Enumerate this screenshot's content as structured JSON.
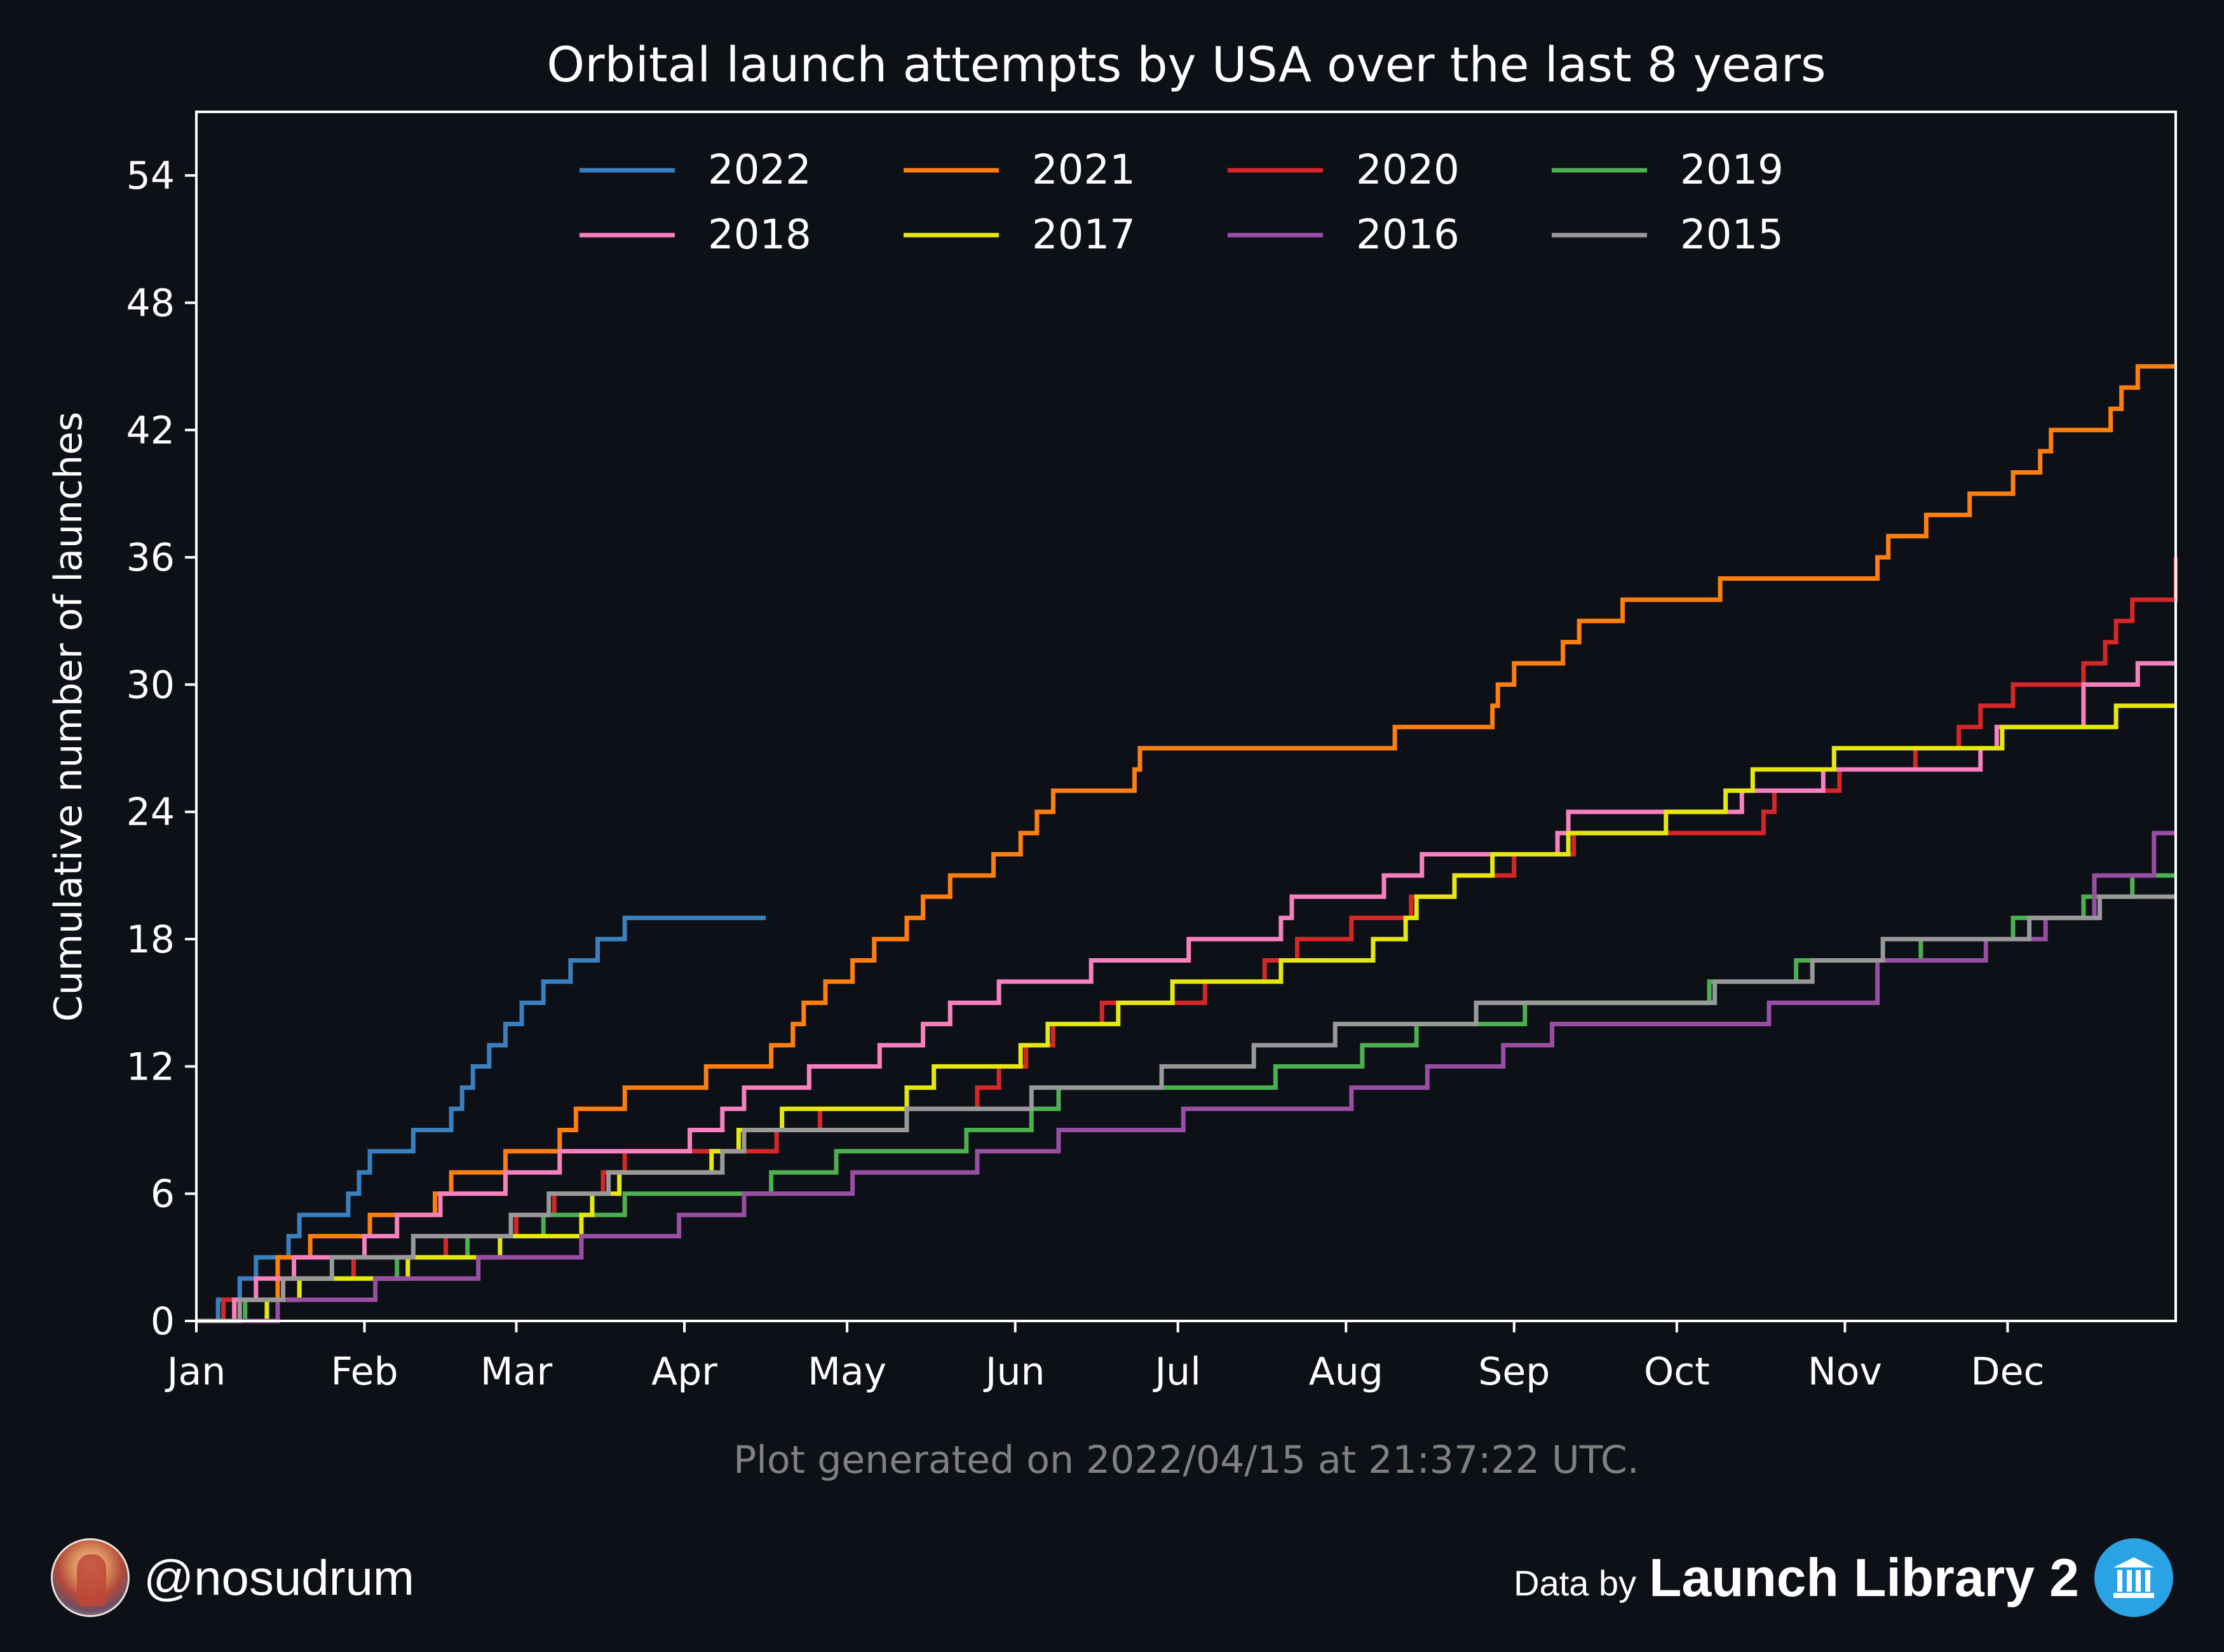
{
  "title": "Orbital launch attempts by USA over the last 8 years",
  "footnote": "Plot generated on 2022/04/15 at 21:37:22 UTC.",
  "author": {
    "handle": "@nosudrum",
    "avatar_icon": "astronaut-avatar-icon"
  },
  "credit": {
    "prefix": "Data by",
    "brand": "Launch Library 2",
    "logo_icon": "museum-columns-icon"
  },
  "colors": {
    "background": "#0d1017",
    "axes": "#ffffff",
    "footnote": "#808080"
  },
  "chart_data": {
    "type": "line",
    "step": "post",
    "ylabel": "Cumulative number of launches",
    "xlabel": "",
    "x_ticks": [
      "Jan",
      "Feb",
      "Mar",
      "Apr",
      "May",
      "Jun",
      "Jul",
      "Aug",
      "Sep",
      "Oct",
      "Nov",
      "Dec"
    ],
    "x_unit": "day of year",
    "xlim": [
      1,
      366
    ],
    "ylim": [
      0,
      57
    ],
    "y_ticks": [
      0,
      6,
      12,
      18,
      24,
      30,
      36,
      42,
      48,
      54
    ],
    "grid": false,
    "legend": {
      "position": "top-center",
      "columns": 4
    },
    "series": [
      {
        "name": "2022",
        "color": "#3a80bf",
        "x": [
          1,
          5,
          9,
          12,
          18,
          20,
          29,
          31,
          33,
          41,
          48,
          50,
          52,
          55,
          58,
          61,
          65,
          70,
          75,
          80,
          91,
          98,
          106
        ],
        "y": [
          0,
          1,
          2,
          3,
          4,
          5,
          6,
          7,
          8,
          9,
          10,
          11,
          12,
          13,
          14,
          15,
          16,
          17,
          18,
          19,
          19,
          19,
          19
        ]
      },
      {
        "name": "2021",
        "color": "#ff7f0e",
        "x": [
          1,
          8,
          16,
          22,
          33,
          45,
          48,
          58,
          68,
          71,
          80,
          95,
          107,
          111,
          113,
          117,
          122,
          126,
          132,
          135,
          140,
          148,
          153,
          156,
          159,
          161,
          165,
          174,
          175,
          180,
          222,
          240,
          241,
          244,
          253,
          256,
          264,
          282,
          311,
          313,
          320,
          328,
          336,
          341,
          343,
          354,
          356,
          359,
          366
        ],
        "y": [
          0,
          1,
          3,
          4,
          5,
          6,
          7,
          8,
          9,
          10,
          11,
          12,
          13,
          14,
          15,
          16,
          17,
          18,
          19,
          20,
          21,
          22,
          23,
          24,
          25,
          25,
          25,
          26,
          27,
          27,
          28,
          29,
          30,
          31,
          32,
          33,
          34,
          35,
          36,
          37,
          38,
          39,
          40,
          41,
          42,
          43,
          44,
          45,
          45
        ]
      },
      {
        "name": "2020",
        "color": "#d62728",
        "x": [
          1,
          6,
          20,
          30,
          47,
          60,
          67,
          76,
          80,
          91,
          108,
          116,
          145,
          149,
          154,
          159,
          168,
          187,
          198,
          204,
          214,
          225,
          233,
          244,
          255,
          290,
          292,
          304,
          318,
          326,
          330,
          336,
          349,
          353,
          355,
          358,
          366
        ],
        "y": [
          0,
          1,
          2,
          3,
          4,
          5,
          6,
          7,
          8,
          8,
          9,
          10,
          11,
          12,
          13,
          14,
          15,
          16,
          17,
          18,
          19,
          20,
          21,
          22,
          23,
          24,
          25,
          26,
          27,
          28,
          29,
          30,
          31,
          32,
          33,
          34,
          36
        ]
      },
      {
        "name": "2019",
        "color": "#4caf50",
        "x": [
          1,
          10,
          20,
          38,
          51,
          65,
          80,
          107,
          119,
          143,
          155,
          160,
          200,
          216,
          226,
          246,
          280,
          296,
          319,
          336,
          349,
          358,
          366
        ],
        "y": [
          0,
          1,
          2,
          3,
          4,
          5,
          6,
          7,
          8,
          9,
          10,
          11,
          12,
          13,
          14,
          15,
          16,
          17,
          18,
          19,
          20,
          21,
          21
        ]
      },
      {
        "name": "2018",
        "color": "#f781bf",
        "x": [
          1,
          8,
          12,
          19,
          32,
          38,
          46,
          58,
          68,
          92,
          98,
          102,
          114,
          127,
          135,
          140,
          149,
          166,
          184,
          201,
          203,
          220,
          227,
          243,
          252,
          254,
          262,
          286,
          301,
          330,
          333,
          349,
          359,
          366
        ],
        "y": [
          0,
          1,
          2,
          3,
          4,
          5,
          6,
          7,
          8,
          9,
          10,
          11,
          12,
          13,
          14,
          15,
          16,
          17,
          18,
          19,
          20,
          21,
          22,
          22,
          23,
          24,
          24,
          25,
          26,
          27,
          28,
          30,
          31,
          31
        ]
      },
      {
        "name": "2017",
        "color": "#e4e80e",
        "x": [
          1,
          14,
          20,
          40,
          57,
          72,
          74,
          79,
          96,
          101,
          109,
          132,
          137,
          153,
          158,
          171,
          181,
          201,
          218,
          224,
          226,
          233,
          240,
          254,
          272,
          283,
          288,
          303,
          334,
          355,
          366
        ],
        "y": [
          0,
          1,
          2,
          3,
          4,
          5,
          6,
          7,
          8,
          9,
          10,
          11,
          12,
          13,
          14,
          15,
          16,
          17,
          18,
          19,
          20,
          21,
          22,
          23,
          24,
          25,
          26,
          27,
          28,
          29,
          29
        ]
      },
      {
        "name": "2016",
        "color": "#984ea3",
        "x": [
          1,
          16,
          34,
          53,
          72,
          90,
          102,
          122,
          145,
          160,
          183,
          214,
          228,
          242,
          251,
          291,
          311,
          331,
          342,
          351,
          362,
          366
        ],
        "y": [
          0,
          1,
          2,
          3,
          4,
          5,
          6,
          7,
          8,
          9,
          10,
          11,
          12,
          13,
          14,
          15,
          17,
          18,
          19,
          21,
          23,
          23
        ]
      },
      {
        "name": "2015",
        "color": "#999999",
        "x": [
          1,
          9,
          17,
          26,
          41,
          59,
          66,
          77,
          98,
          102,
          132,
          155,
          179,
          196,
          211,
          237,
          281,
          299,
          312,
          339,
          352,
          366
        ],
        "y": [
          0,
          1,
          2,
          3,
          4,
          5,
          6,
          7,
          8,
          9,
          10,
          11,
          12,
          13,
          14,
          15,
          16,
          17,
          18,
          19,
          20,
          20
        ]
      }
    ]
  }
}
